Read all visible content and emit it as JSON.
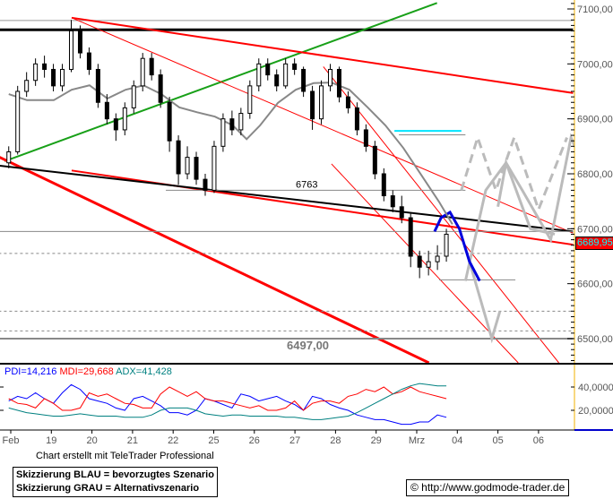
{
  "chart_data": {
    "type": "candlestick",
    "x_tick_labels": [
      "Feb",
      "19",
      "20",
      "21",
      "22",
      "25",
      "26",
      "27",
      "28",
      "29",
      "Mrz",
      "04",
      "05",
      "06"
    ],
    "y_tick_labels": [
      "7100,00",
      "7000,00",
      "6900,00",
      "6800,00",
      "6700,00",
      "6600,00",
      "6500,00"
    ],
    "y_ticks": [
      7100,
      7000,
      6900,
      6800,
      6700,
      6600,
      6500
    ],
    "ylim": [
      6450,
      7115
    ],
    "x_unit": "trading day index (0 = Feb label)",
    "candles": [
      [
        6820,
        6850,
        6810,
        6840
      ],
      [
        6840,
        6960,
        6835,
        6950
      ],
      [
        6950,
        6985,
        6940,
        6970
      ],
      [
        6970,
        7010,
        6960,
        7000
      ],
      [
        7000,
        7015,
        6975,
        6990
      ],
      [
        6990,
        7000,
        6950,
        6960
      ],
      [
        6960,
        7000,
        6950,
        6990
      ],
      [
        6990,
        7080,
        6985,
        7060
      ],
      [
        7060,
        7070,
        7010,
        7020
      ],
      [
        7020,
        7030,
        6980,
        6990
      ],
      [
        6990,
        7000,
        6920,
        6930
      ],
      [
        6930,
        6945,
        6890,
        6900
      ],
      [
        6900,
        6910,
        6860,
        6880
      ],
      [
        6880,
        6930,
        6870,
        6920
      ],
      [
        6920,
        6970,
        6910,
        6960
      ],
      [
        6960,
        7020,
        6950,
        7010
      ],
      [
        7010,
        7020,
        6970,
        6980
      ],
      [
        6980,
        6990,
        6920,
        6930
      ],
      [
        6930,
        6940,
        6840,
        6860
      ],
      [
        6860,
        6870,
        6780,
        6800
      ],
      [
        6800,
        6850,
        6790,
        6830
      ],
      [
        6830,
        6840,
        6780,
        6790
      ],
      [
        6790,
        6800,
        6760,
        6770
      ],
      [
        6770,
        6860,
        6765,
        6850
      ],
      [
        6850,
        6910,
        6840,
        6900
      ],
      [
        6900,
        6915,
        6870,
        6880
      ],
      [
        6880,
        6920,
        6870,
        6910
      ],
      [
        6910,
        6970,
        6900,
        6960
      ],
      [
        6960,
        7010,
        6950,
        7000
      ],
      [
        7000,
        7010,
        6970,
        6980
      ],
      [
        6980,
        6990,
        6950,
        6960
      ],
      [
        6960,
        7010,
        6955,
        7000
      ],
      [
        7000,
        7010,
        6980,
        6990
      ],
      [
        6990,
        6995,
        6940,
        6950
      ],
      [
        6950,
        6960,
        6880,
        6900
      ],
      [
        6900,
        6970,
        6890,
        6960
      ],
      [
        6960,
        7000,
        6950,
        6990
      ],
      [
        6990,
        6995,
        6930,
        6940
      ],
      [
        6940,
        6950,
        6910,
        6920
      ],
      [
        6920,
        6930,
        6870,
        6880
      ],
      [
        6880,
        6890,
        6840,
        6850
      ],
      [
        6850,
        6860,
        6790,
        6800
      ],
      [
        6800,
        6810,
        6750,
        6760
      ],
      [
        6760,
        6770,
        6730,
        6740
      ],
      [
        6740,
        6760,
        6710,
        6720
      ],
      [
        6720,
        6730,
        6630,
        6650
      ],
      [
        6650,
        6660,
        6610,
        6630
      ],
      [
        6630,
        6660,
        6615,
        6640
      ],
      [
        6640,
        6670,
        6625,
        6650
      ],
      [
        6650,
        6700,
        6640,
        6690
      ]
    ],
    "moving_average": [
      [
        -0.05,
        6945
      ],
      [
        0.4,
        6934
      ],
      [
        1.06,
        6934
      ],
      [
        1.5,
        6953
      ],
      [
        1.94,
        6961
      ],
      [
        2.38,
        6937
      ],
      [
        2.83,
        6953
      ],
      [
        3.27,
        6961
      ],
      [
        3.71,
        6945
      ],
      [
        4.15,
        6921
      ],
      [
        4.59,
        6912
      ],
      [
        5.03,
        6904
      ],
      [
        5.47,
        6888
      ],
      [
        5.81,
        6863
      ],
      [
        6.14,
        6888
      ],
      [
        6.58,
        6929
      ],
      [
        7.02,
        6953
      ],
      [
        7.46,
        6965
      ],
      [
        7.9,
        6966
      ],
      [
        8.34,
        6953
      ],
      [
        8.79,
        6921
      ],
      [
        9.23,
        6888
      ],
      [
        9.67,
        6847
      ],
      [
        10.11,
        6798
      ],
      [
        10.55,
        6749
      ],
      [
        10.88,
        6708
      ]
    ],
    "lines": [
      {
        "color": "#000000",
        "width": 3,
        "pts": [
          [
            -0.3,
            7062
          ],
          [
            13.85,
            7062
          ]
        ]
      },
      {
        "color": "#999999",
        "width": 1,
        "pts": [
          [
            -0.3,
            7079
          ],
          [
            13.85,
            7079
          ]
        ]
      },
      {
        "color": "#18a018",
        "width": 2,
        "pts": [
          [
            -0.15,
            6823
          ],
          [
            10.5,
            7111
          ]
        ]
      },
      {
        "color": "#ff0000",
        "width": 2,
        "pts": [
          [
            1.5,
            7084
          ],
          [
            13.85,
            6947
          ]
        ]
      },
      {
        "color": "#ff0000",
        "width": 1,
        "pts": [
          [
            1.5,
            7084
          ],
          [
            13.85,
            6692
          ]
        ]
      },
      {
        "color": "#ff0000",
        "width": 1,
        "pts": [
          [
            7.7,
            6995
          ],
          [
            13.5,
            6456
          ]
        ]
      },
      {
        "color": "#ff0000",
        "width": 1,
        "pts": [
          [
            7.9,
            6818
          ],
          [
            12.5,
            6456
          ]
        ]
      },
      {
        "color": "#ff0000",
        "width": 2,
        "pts": [
          [
            1.5,
            6806
          ],
          [
            13.85,
            6671
          ]
        ]
      },
      {
        "color": "#ff0000",
        "width": 3,
        "pts": [
          [
            -0.3,
            6831
          ],
          [
            10.3,
            6456
          ]
        ]
      },
      {
        "color": "#000000",
        "width": 2,
        "pts": [
          [
            -0.3,
            6815
          ],
          [
            13.85,
            6695
          ]
        ]
      },
      {
        "color": "#888888",
        "width": 1,
        "pts": [
          [
            -0.3,
            6695
          ],
          [
            13.85,
            6695
          ]
        ]
      },
      {
        "color": "#888888",
        "width": 2,
        "pts": [
          [
            -0.3,
            6500
          ],
          [
            13.85,
            6500
          ]
        ]
      },
      {
        "color": "#888888",
        "width": 1,
        "dash": true,
        "pts": [
          [
            -0.3,
            6655
          ],
          [
            13.85,
            6655
          ]
        ]
      },
      {
        "color": "#888888",
        "width": 1,
        "dash": true,
        "pts": [
          [
            -0.3,
            6550
          ],
          [
            13.85,
            6550
          ]
        ]
      },
      {
        "color": "#888888",
        "width": 1,
        "dash": true,
        "pts": [
          [
            -0.3,
            6514
          ],
          [
            13.85,
            6514
          ]
        ]
      },
      {
        "color": "#888888",
        "width": 1,
        "pts": [
          [
            3.82,
            6770
          ],
          [
            11.2,
            6770
          ]
        ]
      },
      {
        "color": "#888888",
        "width": 1,
        "pts": [
          [
            10.55,
            6607
          ],
          [
            12.43,
            6607
          ]
        ]
      },
      {
        "color": "#00e5ff",
        "width": 2,
        "pts": [
          [
            9.45,
            6878
          ],
          [
            11.1,
            6878
          ]
        ]
      },
      {
        "color": "#888888",
        "width": 1,
        "pts": [
          [
            9.56,
            6871
          ],
          [
            11.2,
            6871
          ]
        ]
      },
      {
        "color": "#bbbbbb",
        "width": 3,
        "dash": true,
        "pts": [
          [
            11.1,
            6770
          ],
          [
            11.5,
            6866
          ],
          [
            11.95,
            6770
          ],
          [
            12.4,
            6866
          ],
          [
            13.0,
            6735
          ],
          [
            13.7,
            6866
          ]
        ]
      },
      {
        "color": "#bbbbbb",
        "width": 3,
        "pts": [
          [
            11.2,
            6605
          ],
          [
            11.7,
            6770
          ],
          [
            12.2,
            6820
          ],
          [
            12.6,
            6770
          ],
          [
            13.3,
            6680
          ],
          [
            13.8,
            6866
          ],
          [
            14.3,
            6780
          ]
        ]
      },
      {
        "color": "#bbbbbb",
        "width": 3,
        "pts": [
          [
            11.3,
            6640
          ],
          [
            11.85,
            6500
          ],
          [
            12.05,
            6550
          ]
        ]
      },
      {
        "color": "#bbbbbb",
        "width": 3,
        "pts": [
          [
            12.0,
            6740
          ],
          [
            12.2,
            6820
          ],
          [
            12.8,
            6700
          ],
          [
            13.4,
            6690
          ]
        ]
      },
      {
        "color": "#0000dd",
        "width": 3,
        "pts": [
          [
            10.44,
            6695
          ],
          [
            10.6,
            6720
          ],
          [
            10.82,
            6730
          ],
          [
            11.05,
            6700
          ],
          [
            11.3,
            6640
          ],
          [
            11.55,
            6605
          ]
        ]
      }
    ],
    "annotations": [
      {
        "text": "6763",
        "x": 6.8,
        "y": 6775
      },
      {
        "text": "6497,00",
        "x": 6.8,
        "y": 6480
      }
    ],
    "last_price": "6689,95",
    "indicator": {
      "y_tick_labels": [
        "40,0000",
        "20,0000"
      ],
      "ylim": [
        0,
        50
      ],
      "legend": [
        {
          "text": "PDI=14,216",
          "color": "#0000ff"
        },
        {
          "text": "MDI=29,668",
          "color": "#ff0000"
        },
        {
          "text": "ADX=41,428",
          "color": "#008080"
        }
      ],
      "series": [
        {
          "name": "PDI",
          "color": "#0000ff",
          "values": [
            28,
            32,
            30,
            35,
            30,
            26,
            35,
            42,
            38,
            30,
            28,
            26,
            22,
            20,
            30,
            32,
            28,
            24,
            18,
            18,
            16,
            20,
            30,
            28,
            25,
            22,
            34,
            32,
            28,
            30,
            32,
            28,
            25,
            20,
            32,
            30,
            25,
            22,
            20,
            16,
            14,
            12,
            12,
            10,
            8,
            8,
            10,
            10,
            16,
            14
          ]
        },
        {
          "name": "MDI",
          "color": "#ff0000",
          "values": [
            30,
            26,
            25,
            22,
            30,
            26,
            20,
            20,
            22,
            35,
            32,
            34,
            30,
            26,
            25,
            22,
            22,
            34,
            40,
            36,
            32,
            36,
            30,
            28,
            28,
            26,
            24,
            22,
            24,
            20,
            20,
            22,
            28,
            20,
            26,
            28,
            28,
            26,
            32,
            34,
            38,
            36,
            40,
            34,
            36,
            40,
            36,
            34,
            32,
            30
          ]
        },
        {
          "name": "ADX",
          "color": "#008080",
          "values": [
            22,
            20,
            18,
            17,
            16,
            15,
            15,
            16,
            17,
            16,
            15,
            15,
            15,
            14,
            14,
            14,
            16,
            20,
            22,
            22,
            22,
            20,
            17,
            16,
            15,
            16,
            16,
            15,
            15,
            15,
            15,
            14,
            14,
            13,
            12,
            12,
            13,
            14,
            15,
            18,
            22,
            26,
            30,
            34,
            38,
            41,
            43,
            42,
            41,
            41
          ]
        }
      ]
    }
  },
  "footer": {
    "credit": "Chart erstellt mit TeleTrader Professional",
    "legend_line1": "Skizzierung BLAU = bevorzugtes Szenario",
    "legend_line2": "Skizzierung GRAU = Alternativszenario",
    "url": "© http://www.godmode-trader.de"
  }
}
